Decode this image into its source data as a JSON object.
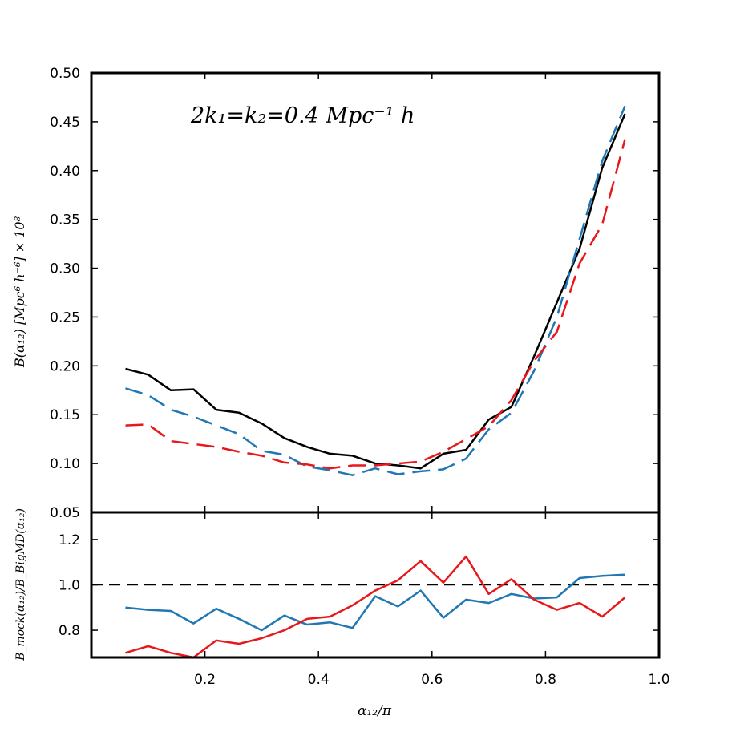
{
  "chart_data": [
    {
      "type": "line",
      "panel": "top",
      "annotation": "2k₁=k₂=0.4  Mpc⁻¹ h",
      "ylabel": "B(α₁₂)  [Mpc⁶ h⁻⁶]  × 10⁸",
      "xlim": [
        0.0,
        1.0
      ],
      "ylim": [
        0.05,
        0.5
      ],
      "yticks": [
        "0.05",
        "0.10",
        "0.15",
        "0.20",
        "0.25",
        "0.30",
        "0.35",
        "0.40",
        "0.45",
        "0.50"
      ],
      "x": [
        0.06,
        0.1,
        0.14,
        0.18,
        0.22,
        0.26,
        0.3,
        0.34,
        0.38,
        0.42,
        0.46,
        0.5,
        0.54,
        0.58,
        0.62,
        0.66,
        0.7,
        0.74,
        0.78,
        0.82,
        0.86,
        0.9,
        0.94
      ],
      "series": [
        {
          "color": "#000000",
          "style": "solid",
          "values": [
            0.197,
            0.191,
            0.175,
            0.176,
            0.155,
            0.152,
            0.141,
            0.126,
            0.117,
            0.11,
            0.108,
            0.1,
            0.098,
            0.095,
            0.11,
            0.114,
            0.145,
            0.158,
            0.21,
            0.265,
            0.32,
            0.403,
            0.458
          ]
        },
        {
          "color": "#1f77b4",
          "style": "dashed",
          "values": [
            0.177,
            0.17,
            0.155,
            0.148,
            0.139,
            0.13,
            0.113,
            0.109,
            0.097,
            0.093,
            0.088,
            0.095,
            0.089,
            0.092,
            0.094,
            0.105,
            0.135,
            0.152,
            0.195,
            0.25,
            0.33,
            0.41,
            0.466
          ]
        },
        {
          "color": "#e8171b",
          "style": "dashed",
          "values": [
            0.139,
            0.14,
            0.123,
            0.12,
            0.117,
            0.112,
            0.108,
            0.101,
            0.099,
            0.095,
            0.098,
            0.098,
            0.1,
            0.102,
            0.112,
            0.125,
            0.138,
            0.165,
            0.205,
            0.235,
            0.305,
            0.345,
            0.432
          ]
        }
      ]
    },
    {
      "type": "line",
      "panel": "bottom",
      "xlabel": "α₁₂/π",
      "ylabel": "B_mock(α₁₂)/B_BigMD(α₁₂)",
      "xlim": [
        0.0,
        1.0
      ],
      "ylim": [
        0.68,
        1.32
      ],
      "xticks": [
        "0.2",
        "0.4",
        "0.6",
        "0.8",
        "1.0"
      ],
      "yticks": [
        "0.8",
        "1.0",
        "1.2"
      ],
      "reference_line": 1.0,
      "x": [
        0.06,
        0.1,
        0.14,
        0.18,
        0.22,
        0.26,
        0.3,
        0.34,
        0.38,
        0.42,
        0.46,
        0.5,
        0.54,
        0.58,
        0.62,
        0.66,
        0.7,
        0.74,
        0.78,
        0.82,
        0.86,
        0.9,
        0.94
      ],
      "series": [
        {
          "color": "#1f77b4",
          "style": "solid",
          "values": [
            0.9,
            0.89,
            0.885,
            0.83,
            0.895,
            0.85,
            0.8,
            0.865,
            0.825,
            0.835,
            0.81,
            0.95,
            0.905,
            0.975,
            0.855,
            0.935,
            0.92,
            0.96,
            0.94,
            0.945,
            1.03,
            1.04,
            1.045
          ]
        },
        {
          "color": "#e8171b",
          "style": "solid",
          "values": [
            0.7,
            0.73,
            0.7,
            0.68,
            0.755,
            0.74,
            0.765,
            0.8,
            0.85,
            0.86,
            0.91,
            0.975,
            1.02,
            1.105,
            1.01,
            1.125,
            0.96,
            1.025,
            0.935,
            0.89,
            0.92,
            0.86,
            0.945
          ]
        }
      ]
    }
  ]
}
